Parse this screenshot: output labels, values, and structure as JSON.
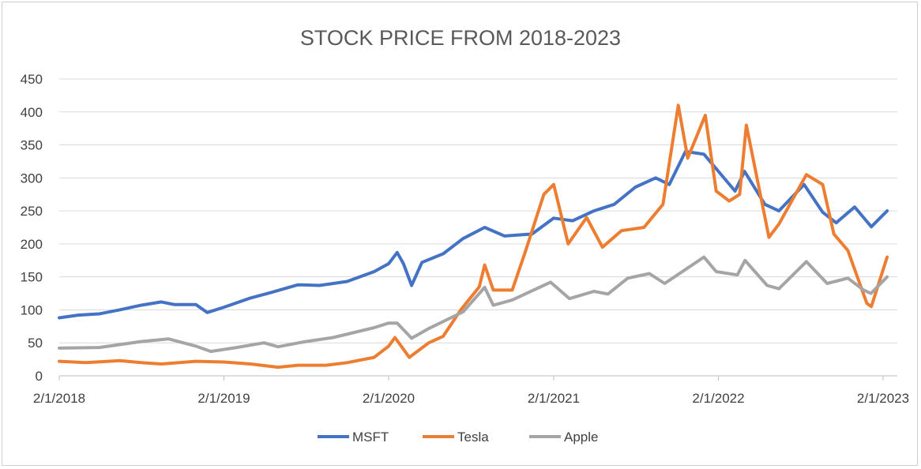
{
  "chart_data": {
    "type": "line",
    "title": "STOCK PRICE FROM 2018-2023",
    "xlabel": "",
    "ylabel": "",
    "ylim": [
      0,
      450
    ],
    "y_ticks": [
      "0",
      "50",
      "100",
      "150",
      "200",
      "250",
      "300",
      "350",
      "400",
      "450"
    ],
    "x_ticks": [
      "2/1/2018",
      "2/1/2019",
      "2/1/2020",
      "2/1/2021",
      "2/1/2022",
      "2/1/2023"
    ],
    "xlim": [
      "2018-02-01",
      "2023-02-10"
    ],
    "grid": true,
    "legend_position": "bottom",
    "series": [
      {
        "name": "MSFT",
        "color": "#4472C4",
        "points": [
          [
            "2018-02-01",
            88
          ],
          [
            "2018-03-15",
            92
          ],
          [
            "2018-05-01",
            94
          ],
          [
            "2018-06-15",
            100
          ],
          [
            "2018-08-01",
            107
          ],
          [
            "2018-09-15",
            112
          ],
          [
            "2018-10-15",
            108
          ],
          [
            "2018-12-01",
            108
          ],
          [
            "2018-12-26",
            96
          ],
          [
            "2019-02-01",
            104
          ],
          [
            "2019-04-01",
            118
          ],
          [
            "2019-05-15",
            126
          ],
          [
            "2019-07-15",
            138
          ],
          [
            "2019-09-01",
            137
          ],
          [
            "2019-11-01",
            143
          ],
          [
            "2019-12-31",
            158
          ],
          [
            "2020-02-01",
            170
          ],
          [
            "2020-02-20",
            187
          ],
          [
            "2020-03-05",
            170
          ],
          [
            "2020-03-23",
            137
          ],
          [
            "2020-04-15",
            172
          ],
          [
            "2020-06-01",
            185
          ],
          [
            "2020-07-15",
            208
          ],
          [
            "2020-09-01",
            225
          ],
          [
            "2020-10-15",
            212
          ],
          [
            "2020-12-15",
            215
          ],
          [
            "2021-02-01",
            239
          ],
          [
            "2021-03-15",
            235
          ],
          [
            "2021-05-01",
            250
          ],
          [
            "2021-06-15",
            260
          ],
          [
            "2021-08-01",
            286
          ],
          [
            "2021-09-15",
            300
          ],
          [
            "2021-10-15",
            290
          ],
          [
            "2021-11-20",
            340
          ],
          [
            "2021-12-31",
            336
          ],
          [
            "2022-02-01",
            310
          ],
          [
            "2022-03-10",
            280
          ],
          [
            "2022-03-31",
            310
          ],
          [
            "2022-05-15",
            260
          ],
          [
            "2022-06-15",
            250
          ],
          [
            "2022-08-10",
            290
          ],
          [
            "2022-09-20",
            248
          ],
          [
            "2022-10-20",
            232
          ],
          [
            "2022-11-30",
            256
          ],
          [
            "2023-01-06",
            226
          ],
          [
            "2023-02-10",
            250
          ]
        ]
      },
      {
        "name": "Tesla",
        "color": "#ED7D31",
        "points": [
          [
            "2018-02-01",
            22
          ],
          [
            "2018-04-01",
            20
          ],
          [
            "2018-06-15",
            23
          ],
          [
            "2018-08-01",
            20
          ],
          [
            "2018-09-15",
            18
          ],
          [
            "2018-12-01",
            22
          ],
          [
            "2019-02-01",
            21
          ],
          [
            "2019-04-01",
            18
          ],
          [
            "2019-06-01",
            13
          ],
          [
            "2019-07-15",
            16
          ],
          [
            "2019-09-15",
            16
          ],
          [
            "2019-11-01",
            20
          ],
          [
            "2019-12-31",
            28
          ],
          [
            "2020-02-01",
            45
          ],
          [
            "2020-02-15",
            58
          ],
          [
            "2020-03-18",
            28
          ],
          [
            "2020-04-30",
            50
          ],
          [
            "2020-06-01",
            60
          ],
          [
            "2020-07-10",
            100
          ],
          [
            "2020-08-20",
            135
          ],
          [
            "2020-09-01",
            168
          ],
          [
            "2020-09-20",
            130
          ],
          [
            "2020-11-01",
            130
          ],
          [
            "2020-12-01",
            190
          ],
          [
            "2021-01-10",
            275
          ],
          [
            "2021-02-01",
            290
          ],
          [
            "2021-03-05",
            200
          ],
          [
            "2021-04-15",
            240
          ],
          [
            "2021-05-20",
            195
          ],
          [
            "2021-07-01",
            220
          ],
          [
            "2021-08-20",
            225
          ],
          [
            "2021-10-01",
            260
          ],
          [
            "2021-11-04",
            410
          ],
          [
            "2021-11-25",
            330
          ],
          [
            "2022-01-03",
            395
          ],
          [
            "2022-01-27",
            280
          ],
          [
            "2022-02-25",
            265
          ],
          [
            "2022-03-20",
            275
          ],
          [
            "2022-04-04",
            380
          ],
          [
            "2022-05-24",
            210
          ],
          [
            "2022-06-15",
            230
          ],
          [
            "2022-08-15",
            305
          ],
          [
            "2022-09-20",
            290
          ],
          [
            "2022-10-15",
            215
          ],
          [
            "2022-11-15",
            190
          ],
          [
            "2022-12-27",
            110
          ],
          [
            "2023-01-06",
            105
          ],
          [
            "2023-02-10",
            180
          ]
        ]
      },
      {
        "name": "Apple",
        "color": "#A5A5A5",
        "points": [
          [
            "2018-02-01",
            42
          ],
          [
            "2018-05-01",
            43
          ],
          [
            "2018-08-01",
            52
          ],
          [
            "2018-10-01",
            56
          ],
          [
            "2018-12-01",
            45
          ],
          [
            "2019-01-03",
            37
          ],
          [
            "2019-03-01",
            43
          ],
          [
            "2019-05-01",
            50
          ],
          [
            "2019-06-01",
            44
          ],
          [
            "2019-08-01",
            52
          ],
          [
            "2019-10-01",
            58
          ],
          [
            "2019-12-31",
            73
          ],
          [
            "2020-02-01",
            80
          ],
          [
            "2020-02-20",
            80
          ],
          [
            "2020-03-23",
            57
          ],
          [
            "2020-05-01",
            72
          ],
          [
            "2020-07-15",
            97
          ],
          [
            "2020-09-01",
            134
          ],
          [
            "2020-09-20",
            107
          ],
          [
            "2020-11-01",
            115
          ],
          [
            "2021-01-25",
            142
          ],
          [
            "2021-03-08",
            117
          ],
          [
            "2021-05-01",
            128
          ],
          [
            "2021-06-01",
            124
          ],
          [
            "2021-07-15",
            148
          ],
          [
            "2021-09-01",
            155
          ],
          [
            "2021-10-05",
            140
          ],
          [
            "2021-12-31",
            180
          ],
          [
            "2022-01-27",
            158
          ],
          [
            "2022-03-15",
            153
          ],
          [
            "2022-04-01",
            175
          ],
          [
            "2022-05-20",
            137
          ],
          [
            "2022-06-15",
            132
          ],
          [
            "2022-08-15",
            173
          ],
          [
            "2022-09-30",
            140
          ],
          [
            "2022-11-15",
            148
          ],
          [
            "2022-12-20",
            130
          ],
          [
            "2023-01-05",
            125
          ],
          [
            "2023-02-10",
            150
          ]
        ]
      }
    ]
  }
}
